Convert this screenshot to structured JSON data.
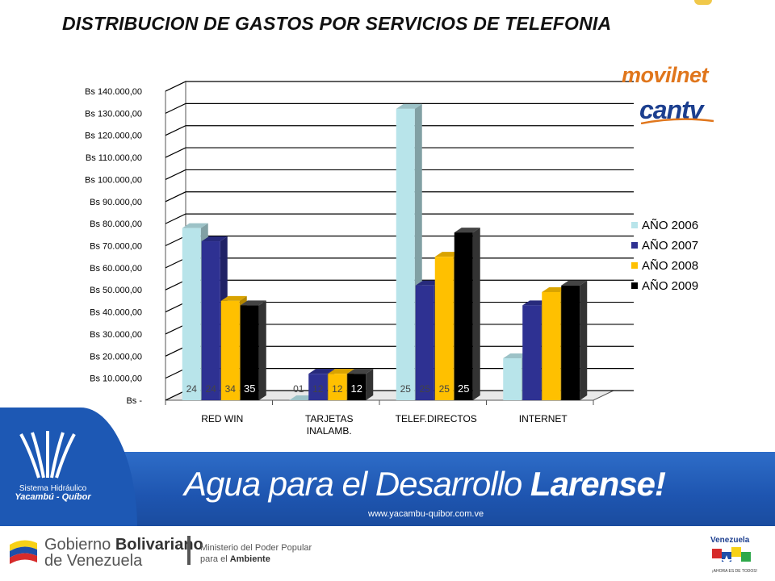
{
  "title": "DISTRIBUCION DE GASTOS POR SERVICIOS DE TELEFONIA",
  "logos": {
    "movilnet": "movilnet",
    "cantv": "cantv"
  },
  "chart_data": {
    "type": "bar",
    "categories": [
      [
        "RED WIN"
      ],
      [
        "TARJETAS",
        "INALAMB."
      ],
      [
        "TELEF.DIRECTOS"
      ],
      [
        "INTERNET"
      ]
    ],
    "series": [
      {
        "name": "AÑO 2006",
        "color": "#b8e4ea",
        "values": [
          78000,
          0,
          132000,
          19000
        ]
      },
      {
        "name": "AÑO 2007",
        "color": "#2e3192",
        "values": [
          72000,
          12000,
          52000,
          43000
        ]
      },
      {
        "name": "AÑO 2008",
        "color": "#ffc000",
        "values": [
          45000,
          12000,
          65000,
          49000
        ]
      },
      {
        "name": "AÑO 2009",
        "color": "#000000",
        "values": [
          43000,
          12000,
          76000,
          52000
        ]
      }
    ],
    "bar_labels": [
      [
        "24",
        "24",
        "34",
        "35"
      ],
      [
        "01",
        "12",
        "12",
        "12"
      ],
      [
        "25",
        "25",
        "25",
        "25"
      ],
      [
        "",
        "",
        "",
        ""
      ]
    ],
    "ylim": [
      0,
      140000
    ],
    "yticks": [
      {
        "value": 0,
        "label": "Bs -"
      },
      {
        "value": 10000,
        "label": "Bs 10.000,00"
      },
      {
        "value": 20000,
        "label": "Bs 20.000,00"
      },
      {
        "value": 30000,
        "label": "Bs 30.000,00"
      },
      {
        "value": 40000,
        "label": "Bs 40.000,00"
      },
      {
        "value": 50000,
        "label": "Bs 50.000,00"
      },
      {
        "value": 60000,
        "label": "Bs 60.000,00"
      },
      {
        "value": 70000,
        "label": "Bs 70.000,00"
      },
      {
        "value": 80000,
        "label": "Bs 80.000,00"
      },
      {
        "value": 90000,
        "label": "Bs 90.000,00"
      },
      {
        "value": 100000,
        "label": "Bs 100.000,00"
      },
      {
        "value": 110000,
        "label": "Bs 110.000,00"
      },
      {
        "value": 120000,
        "label": "Bs 120.000,00"
      },
      {
        "value": 130000,
        "label": "Bs 130.000,00"
      },
      {
        "value": 140000,
        "label": "Bs 140.000,00"
      }
    ],
    "grid": true,
    "legend_position": "right"
  },
  "banner": {
    "org_line1": "Sistema Hidráulico",
    "org_line2": "Yacambú - Quíbor",
    "slogan_pre": "Agua para el Desarrollo ",
    "slogan_bold": "Larense!",
    "url": "www.yacambu-quibor.com.ve"
  },
  "footer": {
    "gob_a": "Gobierno ",
    "gob_b": "Bolivariano",
    "gob_c": "de Venezuela",
    "min_a": "Ministerio del Poder Popular",
    "min_b": "para el ",
    "min_c": "Ambiente",
    "ven_title": "Venezuela",
    "ven_sub": "¡AHORA ES DE TODOS!"
  }
}
